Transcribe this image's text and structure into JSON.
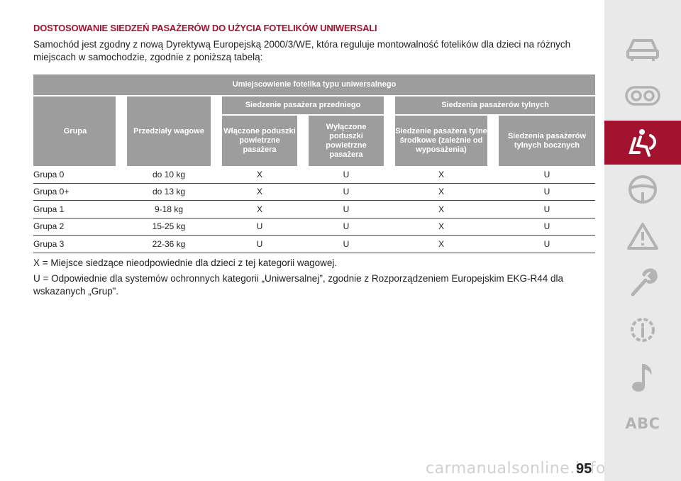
{
  "section_title": "DOSTOSOWANIE SIEDZEŃ PASAŻERÓW DO UŻYCIA FOTELIKÓW UNIWERSALI",
  "intro": "Samochód jest zgodny z nową Dyrektywą Europejską 2000/3/WE, która reguluje montowalność fotelików dla dzieci na różnych miejscach w samochodzie, zgodnie z poniższą tabelą:",
  "table": {
    "top_header": "Umiejscowienie fotelika typu uniwersalnego",
    "group_header": "Grupa",
    "weight_header": "Przedziały wagowe",
    "front_header": "Siedzenie pasażera przedniego",
    "rear_header": "Siedzenia pasażerów tylnych",
    "front_airbag_on": "Włączone poduszki powietrzne pasażera",
    "front_airbag_off": "Wyłączone poduszki powietrzne pasażera",
    "rear_center": "Siedzenie pasażera tylne środkowe (zależnie od wyposażenia)",
    "rear_side": "Siedzenia pasażerów tylnych bocznych",
    "rows": [
      {
        "group": "Grupa 0",
        "weight": "do 10 kg",
        "c1": "X",
        "c2": "U",
        "c3": "X",
        "c4": "U"
      },
      {
        "group": "Grupa 0+",
        "weight": "do 13 kg",
        "c1": "X",
        "c2": "U",
        "c3": "X",
        "c4": "U"
      },
      {
        "group": "Grupa 1",
        "weight": "9-18 kg",
        "c1": "X",
        "c2": "U",
        "c3": "X",
        "c4": "U"
      },
      {
        "group": "Grupa 2",
        "weight": "15-25 kg",
        "c1": "U",
        "c2": "U",
        "c3": "X",
        "c4": "U"
      },
      {
        "group": "Grupa 3",
        "weight": "22-36 kg",
        "c1": "U",
        "c2": "U",
        "c3": "X",
        "c4": "U"
      }
    ]
  },
  "note_x": "X = Miejsce siedzące nieodpowiednie dla dzieci z tej kategorii wagowej.",
  "note_u": "U = Odpowiednie dla systemów ochronnych kategorii „Uniwersalnej”, zgodnie z Rozporządzeniem Europejskim EKG-R44 dla wskazanych „Grup”.",
  "page_number": "95",
  "watermark": "carmanualsonline.info",
  "sidebar": {
    "active_index": 2,
    "icons": [
      "car-icon",
      "dashboard-icon",
      "seat-airbag-icon",
      "steering-wheel-icon",
      "warning-triangle-icon",
      "wrench-icon",
      "info-gear-icon",
      "music-note-icon",
      "abc-index"
    ],
    "abc_label": "ABC",
    "accent_color": "#a3122e",
    "icon_color": "#b3b3b3"
  }
}
